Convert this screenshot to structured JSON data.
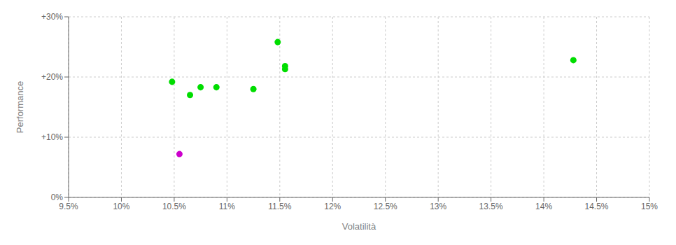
{
  "chart_data": {
    "type": "scatter",
    "xlabel": "Volatilità",
    "ylabel": "Performance",
    "xlim": [
      0.095,
      0.15
    ],
    "ylim": [
      0.0,
      0.3
    ],
    "xticks": [
      {
        "value": 0.095,
        "label": "9.5%"
      },
      {
        "value": 0.1,
        "label": "10%"
      },
      {
        "value": 0.105,
        "label": "10.5%"
      },
      {
        "value": 0.11,
        "label": "11%"
      },
      {
        "value": 0.115,
        "label": "11.5%"
      },
      {
        "value": 0.12,
        "label": "12%"
      },
      {
        "value": 0.125,
        "label": "12.5%"
      },
      {
        "value": 0.13,
        "label": "13%"
      },
      {
        "value": 0.135,
        "label": "13.5%"
      },
      {
        "value": 0.14,
        "label": "14%"
      },
      {
        "value": 0.145,
        "label": "14.5%"
      },
      {
        "value": 0.15,
        "label": "15%"
      }
    ],
    "yticks": [
      {
        "value": 0.0,
        "label": "0%"
      },
      {
        "value": 0.1,
        "label": "+10%"
      },
      {
        "value": 0.2,
        "label": "+20%"
      },
      {
        "value": 0.3,
        "label": "+30%"
      }
    ],
    "grid": true,
    "series": [
      {
        "color": "#00dd00",
        "x": [
          0.1048,
          0.1075,
          0.109,
          0.1065,
          0.1125,
          0.1148,
          0.1155,
          0.1155,
          0.1428
        ],
        "values": [
          0.192,
          0.183,
          0.183,
          0.17,
          0.18,
          0.258,
          0.218,
          0.213,
          0.228
        ]
      },
      {
        "color": "#cc00cc",
        "x": [
          0.1055
        ],
        "values": [
          0.072
        ]
      }
    ]
  }
}
